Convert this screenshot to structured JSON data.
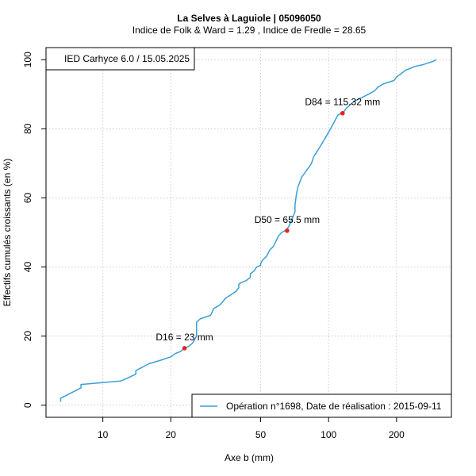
{
  "chart_data": {
    "type": "line",
    "title": "La Selves à Laguiole  |  05096050",
    "subtitle": "Indice de Folk & Ward =  1.29 , Indice de Fredle =  28.65",
    "xlabel": "Axe b (mm)",
    "ylabel": "Effectifs cumulés croissants (en %)",
    "x_scale": "log",
    "xlim": [
      5.6,
      350
    ],
    "ylim": [
      -3.5,
      103.5
    ],
    "x_ticks": [
      10,
      20,
      50,
      100,
      200
    ],
    "x_tick_labels": [
      "10",
      "20",
      "50",
      "100",
      "200"
    ],
    "y_ticks": [
      0,
      20,
      40,
      60,
      80,
      100
    ],
    "y_tick_labels": [
      "0",
      "20",
      "40",
      "60",
      "80",
      "100"
    ],
    "grid": true,
    "series": [
      {
        "name": "Opération n°1698, Date de réalisation : 2015-09-11",
        "color": "#3a9fd8",
        "x": [
          6.5,
          6.5,
          8,
          8,
          12,
          13,
          14,
          14,
          16,
          18,
          20,
          21,
          22,
          23,
          24,
          25,
          26,
          26,
          27,
          30,
          31,
          33,
          34,
          35,
          37,
          39,
          40,
          40,
          41,
          43,
          45,
          45,
          47,
          48,
          50,
          50,
          51,
          53,
          54,
          55,
          57,
          58,
          59,
          60,
          62,
          64,
          65,
          65.5,
          67,
          68,
          69,
          70,
          71,
          71,
          72,
          73,
          74,
          75,
          76,
          78,
          80,
          82,
          84,
          86,
          88,
          90,
          92,
          94,
          96,
          98,
          100,
          102,
          104,
          106,
          108,
          110,
          112,
          113,
          115.3,
          117,
          120,
          125,
          130,
          140,
          150,
          160,
          165,
          175,
          195,
          200,
          210,
          220,
          230,
          240,
          260,
          290,
          300
        ],
        "y": [
          1,
          2,
          5,
          6,
          7,
          8,
          9,
          10,
          12,
          13,
          14,
          15,
          15.5,
          16.5,
          17,
          18,
          20,
          24,
          25,
          26,
          28,
          29,
          30,
          31,
          32,
          33,
          34,
          35,
          35.5,
          36,
          37,
          38,
          39,
          40,
          40.5,
          41,
          42,
          43,
          44,
          45,
          46,
          47,
          48,
          49,
          50,
          50.5,
          50.8,
          51,
          52,
          53,
          54,
          55,
          56,
          58,
          61,
          63,
          64,
          65,
          66,
          67,
          68,
          69,
          70,
          72,
          73,
          74,
          75,
          76,
          77,
          78,
          79,
          80,
          81,
          82,
          83,
          84,
          84.2,
          84.5,
          84.8,
          85,
          86,
          87,
          88,
          89,
          90,
          91,
          92,
          93,
          94,
          95,
          96,
          97,
          97.5,
          98,
          98.5,
          99.5,
          100
        ]
      }
    ],
    "markers": [
      {
        "label": "D16 = 23 mm",
        "x": 23,
        "y": 16.5,
        "color": "#e8231c"
      },
      {
        "label": "D50 = 65.5 mm",
        "x": 65.5,
        "y": 50.5,
        "color": "#e8231c"
      },
      {
        "label": "D84 = 115.32 mm",
        "x": 115.32,
        "y": 84.5,
        "color": "#e8231c"
      }
    ],
    "info_box": "IED Carhyce 6.0 / 15.05.2025",
    "legend_position": "bottom-right"
  }
}
